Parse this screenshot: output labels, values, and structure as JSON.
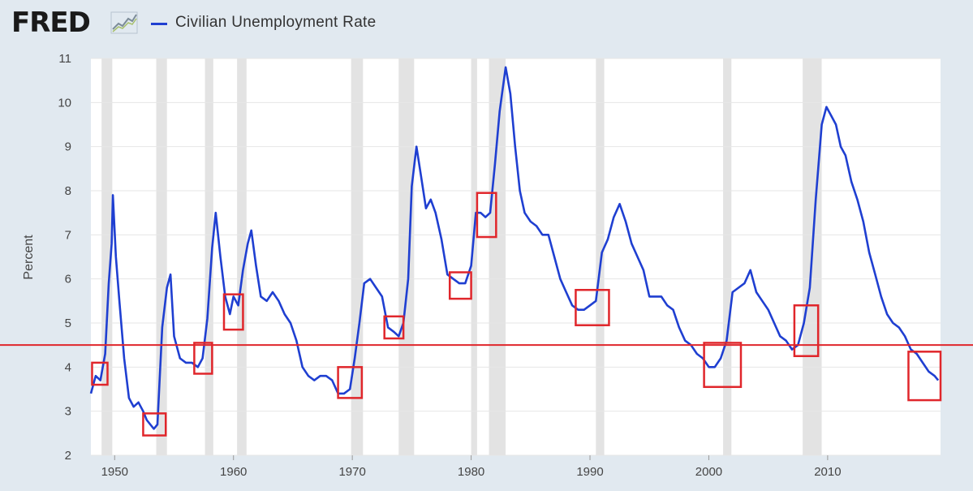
{
  "header": {
    "logo_text": "FRED",
    "logo_mark": "trend-line-icon",
    "legend_label": "Civilian Unemployment Rate"
  },
  "colors": {
    "series": "#1f3fd1",
    "recession": "#e3e3e3",
    "reference_line": "#e0262b",
    "highlight_box": "#e0262b",
    "background": "#e1e9f0",
    "plot_background": "#ffffff"
  },
  "chart_data": {
    "type": "line",
    "title": "Civilian Unemployment Rate",
    "xlabel": "",
    "ylabel": "Percent",
    "xlim": [
      1948,
      2019.5
    ],
    "ylim": [
      2,
      11
    ],
    "x_ticks": [
      1950,
      1960,
      1970,
      1980,
      1990,
      2000,
      2010
    ],
    "y_ticks": [
      2,
      3,
      4,
      5,
      6,
      7,
      8,
      9,
      10,
      11
    ],
    "grid": true,
    "reference_line_y": 4.5,
    "recessions": [
      [
        1948.9,
        1949.8
      ],
      [
        1953.5,
        1954.4
      ],
      [
        1957.6,
        1958.3
      ],
      [
        1960.3,
        1961.1
      ],
      [
        1969.9,
        1970.9
      ],
      [
        1973.9,
        1975.2
      ],
      [
        1980.0,
        1980.5
      ],
      [
        1981.5,
        1982.9
      ],
      [
        1990.5,
        1991.2
      ],
      [
        2001.2,
        2001.9
      ],
      [
        2007.9,
        2009.5
      ]
    ],
    "highlight_boxes": [
      {
        "x": [
          1948.1,
          1949.4
        ],
        "y": [
          3.6,
          4.1
        ]
      },
      {
        "x": [
          1952.4,
          1954.3
        ],
        "y": [
          2.45,
          2.95
        ]
      },
      {
        "x": [
          1956.7,
          1958.2
        ],
        "y": [
          3.85,
          4.55
        ]
      },
      {
        "x": [
          1959.2,
          1960.8
        ],
        "y": [
          4.85,
          5.65
        ]
      },
      {
        "x": [
          1968.8,
          1970.8
        ],
        "y": [
          3.3,
          4.0
        ]
      },
      {
        "x": [
          1972.7,
          1974.3
        ],
        "y": [
          4.65,
          5.15
        ]
      },
      {
        "x": [
          1978.2,
          1980.0
        ],
        "y": [
          5.55,
          6.15
        ]
      },
      {
        "x": [
          1980.5,
          1982.1
        ],
        "y": [
          6.95,
          7.95
        ]
      },
      {
        "x": [
          1988.8,
          1991.6
        ],
        "y": [
          4.95,
          5.75
        ]
      },
      {
        "x": [
          1999.6,
          2002.7
        ],
        "y": [
          3.55,
          4.55
        ]
      },
      {
        "x": [
          2007.2,
          2009.2
        ],
        "y": [
          4.25,
          5.4
        ]
      },
      {
        "x": [
          2016.8,
          2019.5
        ],
        "y": [
          3.25,
          4.35
        ]
      }
    ],
    "series": [
      {
        "name": "Civilian Unemployment Rate",
        "x": [
          1948.0,
          1948.4,
          1948.8,
          1949.2,
          1949.5,
          1949.75,
          1949.85,
          1950.1,
          1950.4,
          1950.8,
          1951.2,
          1951.6,
          1952.0,
          1952.4,
          1952.7,
          1953.0,
          1953.3,
          1953.6,
          1954.0,
          1954.4,
          1954.7,
          1955.0,
          1955.5,
          1956.0,
          1956.5,
          1957.0,
          1957.4,
          1957.8,
          1958.2,
          1958.5,
          1958.9,
          1959.3,
          1959.7,
          1960.0,
          1960.4,
          1960.8,
          1961.2,
          1961.5,
          1961.9,
          1962.3,
          1962.8,
          1963.3,
          1963.8,
          1964.3,
          1964.8,
          1965.3,
          1965.8,
          1966.3,
          1966.8,
          1967.3,
          1967.8,
          1968.3,
          1968.8,
          1969.3,
          1969.8,
          1970.2,
          1970.6,
          1971.0,
          1971.5,
          1972.0,
          1972.5,
          1973.0,
          1973.5,
          1973.9,
          1974.3,
          1974.7,
          1975.0,
          1975.4,
          1975.8,
          1976.2,
          1976.6,
          1977.0,
          1977.5,
          1978.0,
          1978.5,
          1979.0,
          1979.5,
          1980.0,
          1980.4,
          1980.8,
          1981.2,
          1981.6,
          1982.0,
          1982.4,
          1982.9,
          1983.3,
          1983.7,
          1984.1,
          1984.5,
          1985.0,
          1985.5,
          1986.0,
          1986.5,
          1987.0,
          1987.5,
          1988.0,
          1988.5,
          1989.0,
          1989.5,
          1990.0,
          1990.5,
          1991.0,
          1991.5,
          1992.0,
          1992.5,
          1993.0,
          1993.5,
          1994.0,
          1994.5,
          1995.0,
          1995.5,
          1996.0,
          1996.5,
          1997.0,
          1997.5,
          1998.0,
          1998.5,
          1999.0,
          1999.5,
          2000.0,
          2000.5,
          2001.0,
          2001.5,
          2002.0,
          2002.5,
          2003.0,
          2003.5,
          2004.0,
          2004.5,
          2005.0,
          2005.5,
          2006.0,
          2006.5,
          2007.0,
          2007.5,
          2008.0,
          2008.5,
          2009.0,
          2009.5,
          2009.9,
          2010.3,
          2010.7,
          2011.1,
          2011.5,
          2012.0,
          2012.5,
          2013.0,
          2013.5,
          2014.0,
          2014.5,
          2015.0,
          2015.5,
          2016.0,
          2016.5,
          2017.0,
          2017.5,
          2018.0,
          2018.5,
          2019.0,
          2019.3
        ],
        "values": [
          3.4,
          3.8,
          3.7,
          4.3,
          5.9,
          6.8,
          7.9,
          6.5,
          5.5,
          4.2,
          3.3,
          3.1,
          3.2,
          3.0,
          2.8,
          2.7,
          2.6,
          2.7,
          4.9,
          5.8,
          6.1,
          4.7,
          4.2,
          4.1,
          4.1,
          4.0,
          4.2,
          5.1,
          6.7,
          7.5,
          6.5,
          5.6,
          5.2,
          5.6,
          5.4,
          6.2,
          6.8,
          7.1,
          6.3,
          5.6,
          5.5,
          5.7,
          5.5,
          5.2,
          5.0,
          4.6,
          4.0,
          3.8,
          3.7,
          3.8,
          3.8,
          3.7,
          3.4,
          3.4,
          3.5,
          4.2,
          5.0,
          5.9,
          6.0,
          5.8,
          5.6,
          4.9,
          4.8,
          4.7,
          5.0,
          6.0,
          8.1,
          9.0,
          8.3,
          7.6,
          7.8,
          7.5,
          6.9,
          6.1,
          6.0,
          5.9,
          5.9,
          6.3,
          7.5,
          7.5,
          7.4,
          7.5,
          8.6,
          9.8,
          10.8,
          10.2,
          9.0,
          8.0,
          7.5,
          7.3,
          7.2,
          7.0,
          7.0,
          6.5,
          6.0,
          5.7,
          5.4,
          5.3,
          5.3,
          5.4,
          5.5,
          6.6,
          6.9,
          7.4,
          7.7,
          7.3,
          6.8,
          6.5,
          6.2,
          5.6,
          5.6,
          5.6,
          5.4,
          5.3,
          4.9,
          4.6,
          4.5,
          4.3,
          4.2,
          4.0,
          4.0,
          4.2,
          4.6,
          5.7,
          5.8,
          5.9,
          6.2,
          5.7,
          5.5,
          5.3,
          5.0,
          4.7,
          4.6,
          4.4,
          4.5,
          5.0,
          5.8,
          7.8,
          9.5,
          9.9,
          9.7,
          9.5,
          9.0,
          8.8,
          8.2,
          7.8,
          7.3,
          6.6,
          6.1,
          5.6,
          5.2,
          5.0,
          4.9,
          4.7,
          4.4,
          4.3,
          4.1,
          3.9,
          3.8,
          3.7
        ]
      }
    ]
  }
}
